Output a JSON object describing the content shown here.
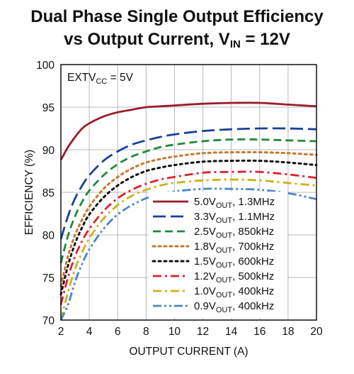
{
  "title": {
    "line1": "Dual Phase Single Output Efficiency",
    "line2_main": "vs Output Current, V",
    "line2_sub": "IN",
    "line2_end": " = 12V"
  },
  "chart_data": {
    "type": "line",
    "xlabel": "OUTPUT CURRENT (A)",
    "ylabel": "EFFICIENCY (%)",
    "xlim": [
      2,
      20
    ],
    "ylim": [
      70,
      100
    ],
    "xticks": [
      2,
      4,
      6,
      8,
      10,
      12,
      14,
      16,
      18,
      20
    ],
    "yticks": [
      70,
      75,
      80,
      85,
      90,
      95,
      100
    ],
    "grid": true,
    "legend_position": "bottom-right",
    "annotation": {
      "main": "EXTV",
      "sub": "CC",
      "end": " = 5V"
    },
    "series": [
      {
        "name_main": "5.0V",
        "name_sub": "OUT",
        "name_end": ", 1.3MHz",
        "color": "#9b1b2a",
        "dash": "solid",
        "x": [
          2,
          2.5,
          3,
          3.5,
          4,
          5,
          6,
          7,
          8,
          9,
          10,
          12,
          14,
          16,
          18,
          20
        ],
        "y": [
          88.8,
          90.3,
          91.5,
          92.5,
          93.1,
          93.9,
          94.4,
          94.7,
          95.0,
          95.1,
          95.2,
          95.4,
          95.5,
          95.5,
          95.3,
          95.1
        ]
      },
      {
        "name_main": "3.3V",
        "name_sub": "OUT",
        "name_end": ", 1.1MHz",
        "color": "#1a3f9c",
        "dash": "longdash",
        "x": [
          2,
          2.5,
          3,
          3.5,
          4,
          5,
          6,
          7,
          8,
          9,
          10,
          12,
          14,
          16,
          18,
          20
        ],
        "y": [
          79.5,
          82.2,
          84.3,
          85.8,
          87.0,
          88.7,
          89.8,
          90.6,
          91.1,
          91.5,
          91.8,
          92.2,
          92.4,
          92.5,
          92.5,
          92.4
        ]
      },
      {
        "name_main": "2.5V",
        "name_sub": "OUT",
        "name_end": ", 850kHz",
        "color": "#1f8a3c",
        "dash": "dash",
        "x": [
          2,
          2.5,
          3,
          3.5,
          4,
          5,
          6,
          7,
          8,
          9,
          10,
          12,
          14,
          16,
          18,
          20
        ],
        "y": [
          76.7,
          79.9,
          82.2,
          83.9,
          85.2,
          87.0,
          88.3,
          89.2,
          89.8,
          90.3,
          90.6,
          91.0,
          91.2,
          91.2,
          91.1,
          91.0
        ]
      },
      {
        "name_main": "1.8V",
        "name_sub": "OUT",
        "name_end": ", 700kHz",
        "color": "#c8762a",
        "dash": "dot",
        "x": [
          2,
          2.5,
          3,
          3.5,
          4,
          5,
          6,
          7,
          8,
          9,
          10,
          12,
          14,
          16,
          18,
          20
        ],
        "y": [
          74.0,
          77.5,
          80.0,
          81.8,
          83.3,
          85.4,
          86.8,
          87.8,
          88.5,
          88.9,
          89.2,
          89.6,
          89.7,
          89.7,
          89.6,
          89.4
        ]
      },
      {
        "name_main": "1.5V",
        "name_sub": "OUT",
        "name_end": ", 600kHz",
        "color": "#111111",
        "dash": "dot",
        "x": [
          2,
          2.5,
          3,
          3.5,
          4,
          5,
          6,
          7,
          8,
          9,
          10,
          12,
          14,
          16,
          18,
          20
        ],
        "y": [
          73.0,
          76.4,
          79.0,
          80.9,
          82.4,
          84.4,
          85.8,
          86.8,
          87.5,
          87.9,
          88.2,
          88.6,
          88.7,
          88.7,
          88.5,
          88.2
        ]
      },
      {
        "name_main": "1.2V",
        "name_sub": "OUT",
        "name_end": ", 500kHz",
        "color": "#e0202c",
        "dash": "dashdot",
        "x": [
          2,
          2.5,
          3,
          3.5,
          4,
          5,
          6,
          7,
          8,
          9,
          10,
          12,
          14,
          16,
          18,
          20
        ],
        "y": [
          71.8,
          75.0,
          77.5,
          79.3,
          80.7,
          82.8,
          84.3,
          85.3,
          86.0,
          86.5,
          86.8,
          87.3,
          87.4,
          87.4,
          87.1,
          86.7
        ]
      },
      {
        "name_main": "1.0V",
        "name_sub": "OUT",
        "name_end": ", 400kHz",
        "color": "#c9b21a",
        "dash": "dashdot",
        "x": [
          2,
          2.5,
          3,
          3.5,
          4,
          5,
          6,
          7,
          8,
          9,
          10,
          12,
          14,
          16,
          18,
          20
        ],
        "y": [
          70.0,
          73.3,
          76.0,
          78.0,
          79.6,
          81.9,
          83.5,
          84.6,
          85.3,
          85.8,
          86.1,
          86.4,
          86.5,
          86.4,
          86.1,
          85.8
        ]
      },
      {
        "name_main": "0.9V",
        "name_sub": "OUT",
        "name_end": ", 400kHz",
        "color": "#4a86c8",
        "dash": "dashdotdot",
        "x": [
          2,
          2.5,
          3,
          3.5,
          4,
          5,
          6,
          7,
          8,
          9,
          10,
          12,
          14,
          16,
          18,
          20
        ],
        "y": [
          70.0,
          71.8,
          74.5,
          76.6,
          78.3,
          80.7,
          82.4,
          83.5,
          84.3,
          84.8,
          85.1,
          85.4,
          85.4,
          85.3,
          84.9,
          84.2
        ]
      }
    ]
  }
}
